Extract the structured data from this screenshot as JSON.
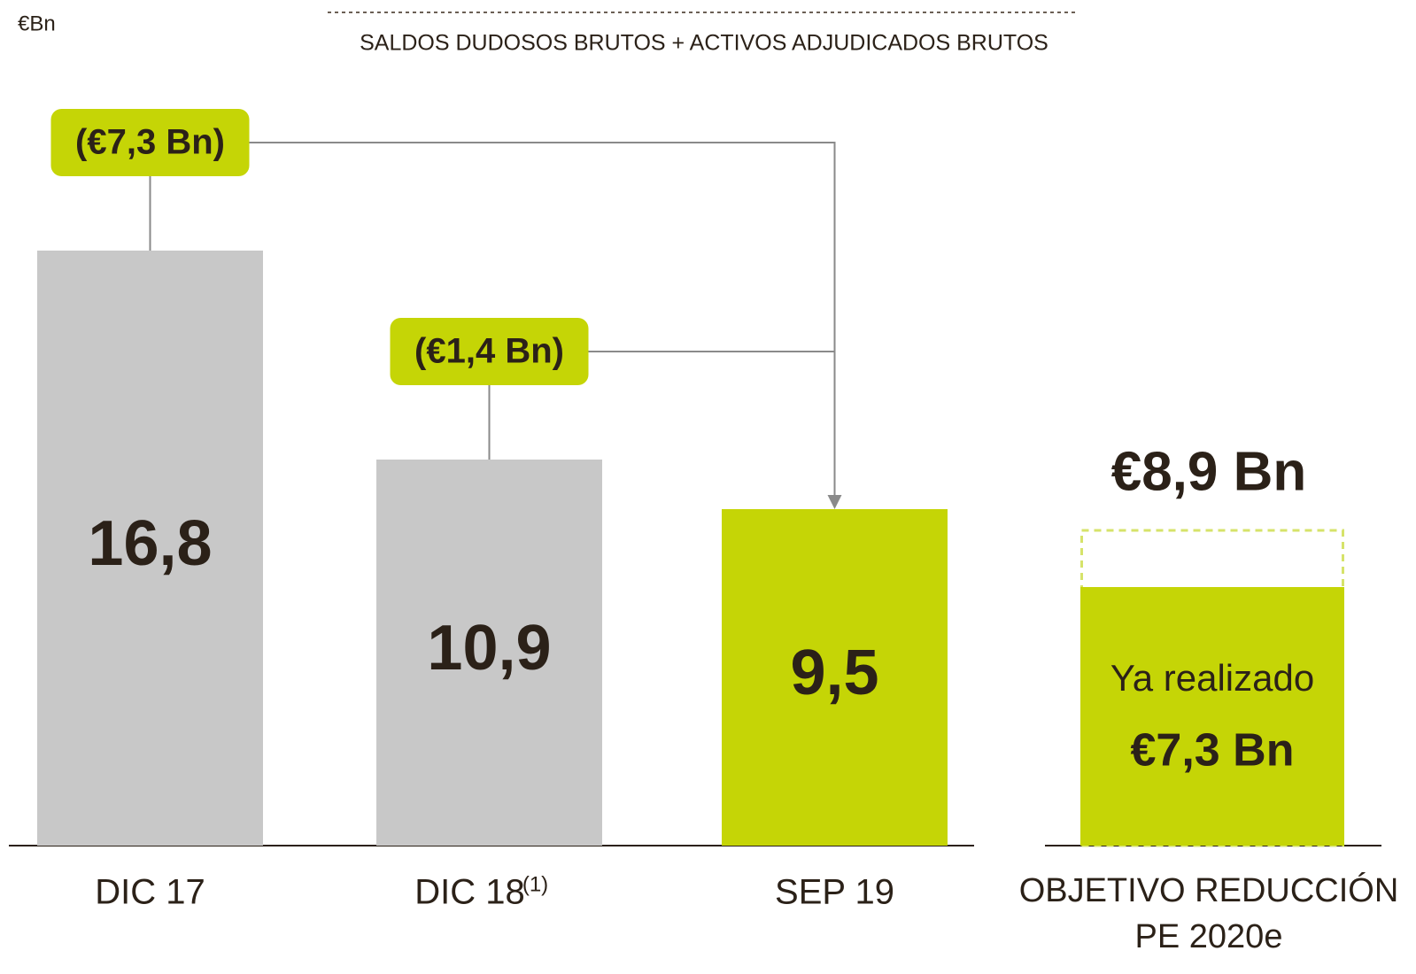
{
  "chart_data": [
    {
      "type": "bar",
      "unit": "€Bn",
      "title": "SALDOS DUDOSOS BRUTOS + ACTIVOS ADJUDICADOS BRUTOS",
      "categories": [
        "DIC 17",
        "DIC 18",
        "SEP 19"
      ],
      "footnotes": [
        null,
        "(1)",
        null
      ],
      "values": [
        16.8,
        10.9,
        9.5
      ],
      "value_labels": [
        "16,8",
        "10,9",
        "9,5"
      ],
      "colors": [
        "#c8c8c8",
        "#c8c8c8",
        "#c5d506"
      ],
      "annotations": [
        {
          "value": 7.3,
          "label": "(€7,3 Bn)"
        },
        {
          "value": 1.4,
          "label": "(€1,4 Bn)"
        }
      ]
    },
    {
      "type": "target",
      "category_lines": [
        "OBJETIVO REDUCCIÓN",
        "PE 2020e"
      ],
      "target": 8.9,
      "target_label": "€8,9 Bn",
      "achieved": 7.3,
      "achieved_label": "€7,3 Bn",
      "achieved_text": "Ya realizado",
      "color": "#c5d506"
    }
  ]
}
